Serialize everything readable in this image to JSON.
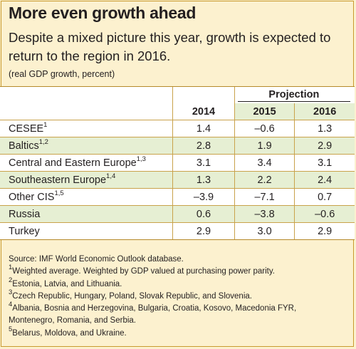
{
  "title": "More even growth ahead",
  "subtitle": "Despite a mixed picture this year, growth is expected to return to the region in 2016.",
  "unit": "(real GDP growth, percent)",
  "table": {
    "projection_label": "Projection",
    "columns": [
      "2014",
      "2015",
      "2016"
    ],
    "rows": [
      {
        "label": "CESEE",
        "sup": "1",
        "values": [
          "1.4",
          "–0.6",
          "1.3"
        ]
      },
      {
        "label": "Baltics",
        "sup": "1,2",
        "values": [
          "2.8",
          "1.9",
          "2.9"
        ]
      },
      {
        "label": "Central and Eastern Europe",
        "sup": "1,3",
        "values": [
          "3.1",
          "3.4",
          "3.1"
        ]
      },
      {
        "label": "Southeastern Europe",
        "sup": "1,4",
        "values": [
          "1.3",
          "2.2",
          "2.4"
        ]
      },
      {
        "label": "Other CIS",
        "sup": "1,5",
        "values": [
          "–3.9",
          "–7.1",
          "0.7"
        ]
      },
      {
        "label": "Russia",
        "sup": "",
        "values": [
          "0.6",
          "–3.8",
          "–0.6"
        ]
      },
      {
        "label": "Turkey",
        "sup": "",
        "values": [
          "2.9",
          "3.0",
          "2.9"
        ]
      }
    ]
  },
  "notes": {
    "source": "Source: IMF World Economic Outlook database.",
    "footnotes": [
      {
        "num": "1",
        "text": "Weighted average. Weighted by GDP valued at purchasing power parity."
      },
      {
        "num": "2",
        "text": "Estonia, Latvia, and Lithuania."
      },
      {
        "num": "3",
        "text": "Czech Republic, Hungary, Poland, Slovak Republic, and Slovenia."
      },
      {
        "num": "4",
        "text": "Albania, Bosnia and Herzegovina, Bulgaria, Croatia, Kosovo, Macedonia FYR,",
        "cont": "Montenegro, Romania, and Serbia."
      },
      {
        "num": "5",
        "text": "Belarus, Moldova, and Ukraine."
      }
    ]
  },
  "colors": {
    "background": "#fcf1cf",
    "row_white": "#ffffff",
    "row_green": "#e6efd3",
    "border": "#c9a24b"
  }
}
